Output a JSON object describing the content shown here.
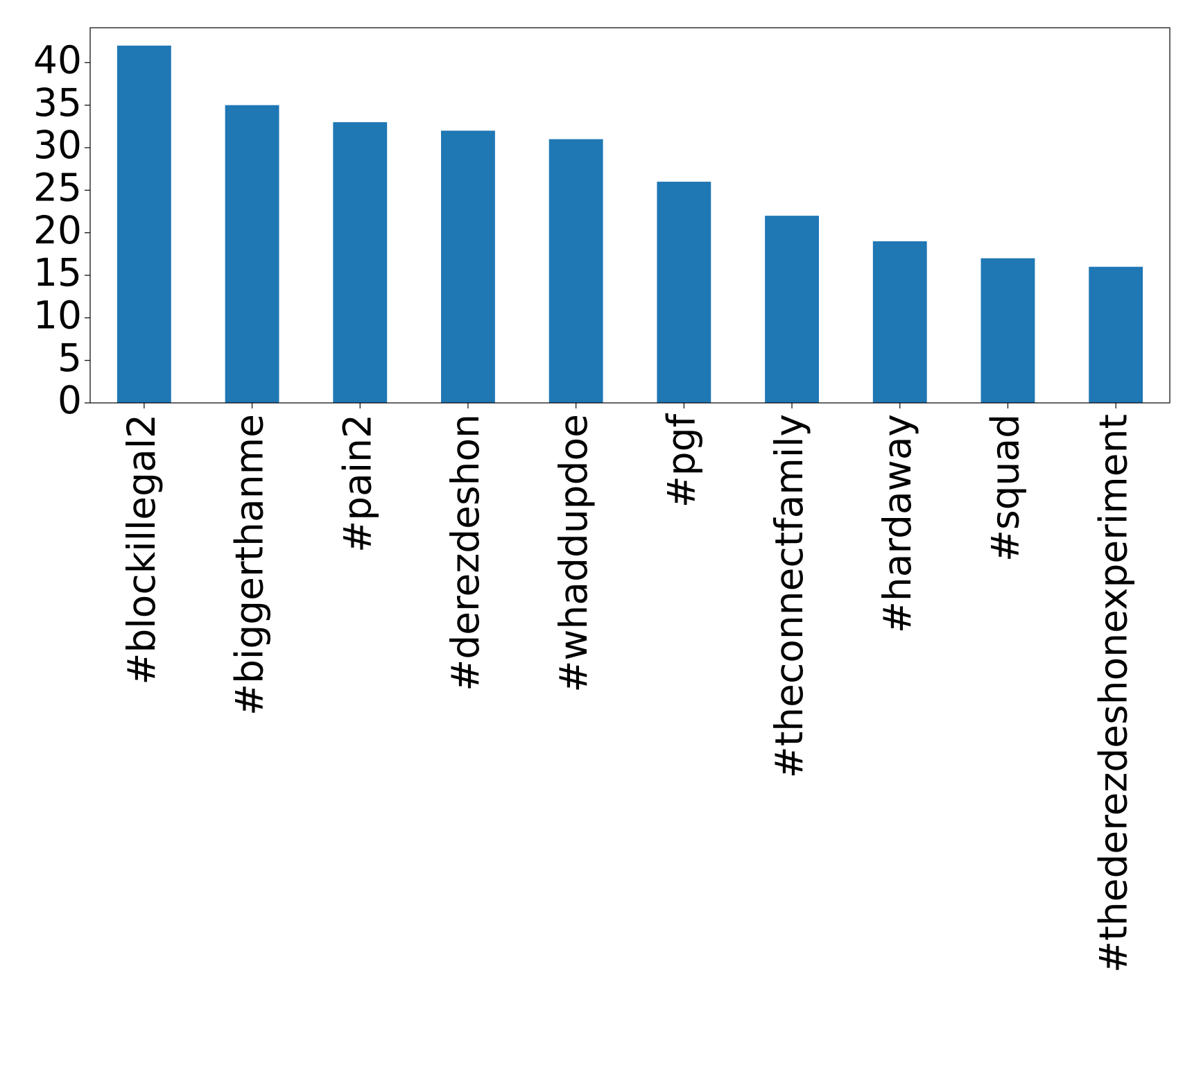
{
  "chart_data": {
    "type": "bar",
    "categories": [
      "#blockillegal2",
      "#biggerthanme",
      "#pain2",
      "#derezdeshon",
      "#whaddupdoe",
      "#pgf",
      "#theconnectfamily",
      "#hardaway",
      "#squad",
      "#thederezdeshonexperiment"
    ],
    "values": [
      42,
      35,
      33,
      32,
      31,
      26,
      22,
      19,
      17,
      16
    ],
    "color": "#1f77b4",
    "ylim": [
      0,
      44.1
    ],
    "yticks": [
      0,
      5,
      10,
      15,
      20,
      25,
      30,
      35,
      40
    ],
    "grid": false
  }
}
